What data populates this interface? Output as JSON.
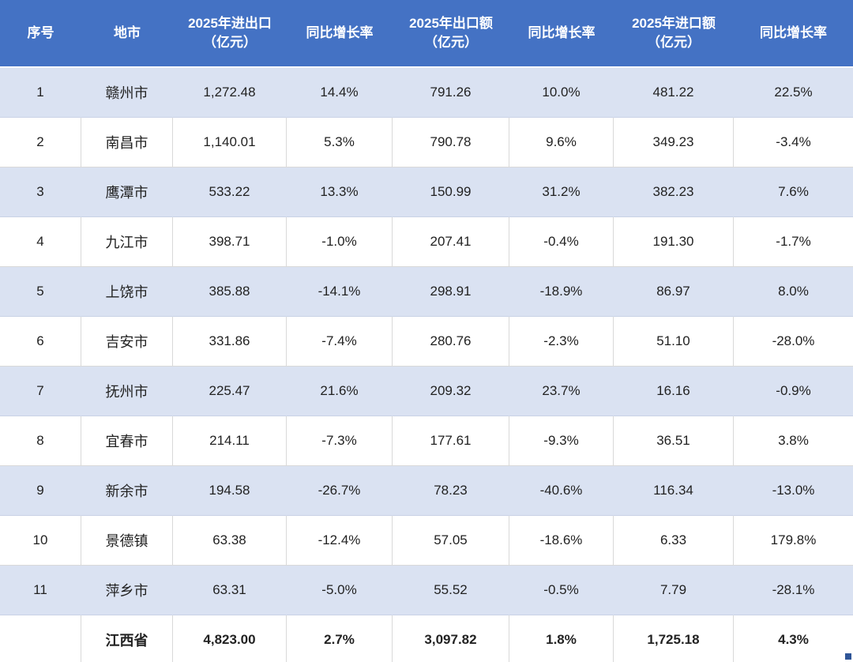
{
  "chart_data": {
    "type": "table",
    "title": "",
    "columns": [
      {
        "label": "序号",
        "sub": ""
      },
      {
        "label": "地市",
        "sub": ""
      },
      {
        "label": "2025年进出口",
        "sub": "（亿元）"
      },
      {
        "label": "同比增长率",
        "sub": ""
      },
      {
        "label": "2025年出口额",
        "sub": "（亿元）"
      },
      {
        "label": "同比增长率",
        "sub": ""
      },
      {
        "label": "2025年进口额",
        "sub": "（亿元）"
      },
      {
        "label": "同比增长率",
        "sub": ""
      }
    ],
    "rows": [
      [
        "1",
        "赣州市",
        "1,272.48",
        "14.4%",
        "791.26",
        "10.0%",
        "481.22",
        "22.5%"
      ],
      [
        "2",
        "南昌市",
        "1,140.01",
        "5.3%",
        "790.78",
        "9.6%",
        "349.23",
        "-3.4%"
      ],
      [
        "3",
        "鹰潭市",
        "533.22",
        "13.3%",
        "150.99",
        "31.2%",
        "382.23",
        "7.6%"
      ],
      [
        "4",
        "九江市",
        "398.71",
        "-1.0%",
        "207.41",
        "-0.4%",
        "191.30",
        "-1.7%"
      ],
      [
        "5",
        "上饶市",
        "385.88",
        "-14.1%",
        "298.91",
        "-18.9%",
        "86.97",
        "8.0%"
      ],
      [
        "6",
        "吉安市",
        "331.86",
        "-7.4%",
        "280.76",
        "-2.3%",
        "51.10",
        "-28.0%"
      ],
      [
        "7",
        "抚州市",
        "225.47",
        "21.6%",
        "209.32",
        "23.7%",
        "16.16",
        "-0.9%"
      ],
      [
        "8",
        "宜春市",
        "214.11",
        "-7.3%",
        "177.61",
        "-9.3%",
        "36.51",
        "3.8%"
      ],
      [
        "9",
        "新余市",
        "194.58",
        "-26.7%",
        "78.23",
        "-40.6%",
        "116.34",
        "-13.0%"
      ],
      [
        "10",
        "景德镇",
        "63.38",
        "-12.4%",
        "57.05",
        "-18.6%",
        "6.33",
        "179.8%"
      ],
      [
        "11",
        "萍乡市",
        "63.31",
        "-5.0%",
        "55.52",
        "-0.5%",
        "7.79",
        "-28.1%"
      ]
    ],
    "total_row": [
      "",
      "江西省",
      "4,823.00",
      "2.7%",
      "3,097.82",
      "1.8%",
      "1,725.18",
      "4.3%"
    ],
    "layout": {
      "banding": "odd-data-rows-shaded",
      "grid": "light-gray-vertical-and-horizontal-lines-on-white-rows",
      "alignment": "center"
    }
  },
  "colors": {
    "header_bg": "#4472C4",
    "header_text": "#FFFFFF",
    "band_bg": "#DAE2F2",
    "band_border": "#C9D2E6",
    "row_bg": "#FFFFFF",
    "grid_line": "#D9D9D9",
    "body_text": "#222222",
    "fill_handle": "#2F5597"
  }
}
